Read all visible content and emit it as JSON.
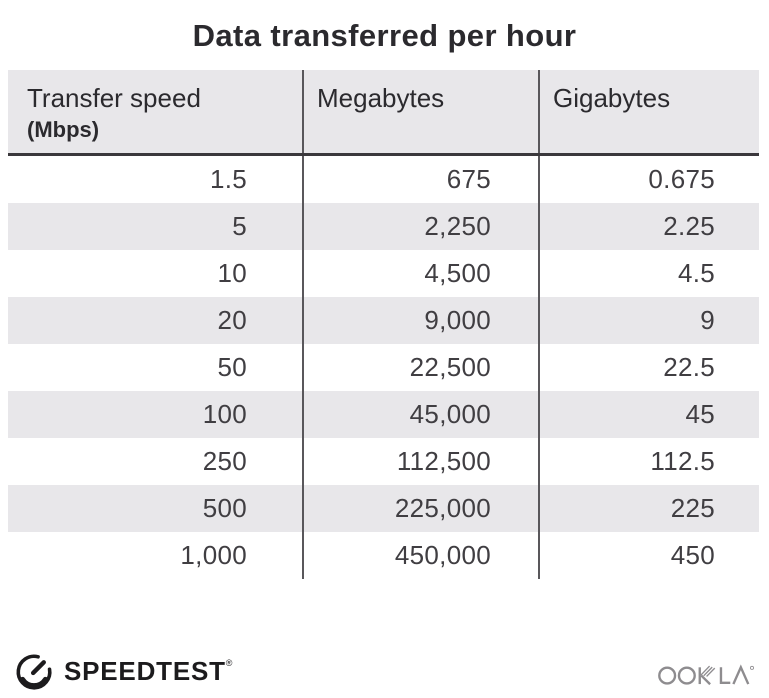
{
  "title": "Data transferred per hour",
  "table": {
    "columns": [
      {
        "label": "Transfer speed",
        "sublabel": "(Mbps)"
      },
      {
        "label": "Megabytes"
      },
      {
        "label": "Gigabytes"
      }
    ],
    "rows": [
      {
        "speed": "1.5",
        "megabytes": "675",
        "gigabytes": "0.675"
      },
      {
        "speed": "5",
        "megabytes": "2,250",
        "gigabytes": "2.25"
      },
      {
        "speed": "10",
        "megabytes": "4,500",
        "gigabytes": "4.5"
      },
      {
        "speed": "20",
        "megabytes": "9,000",
        "gigabytes": "9"
      },
      {
        "speed": "50",
        "megabytes": "22,500",
        "gigabytes": "22.5"
      },
      {
        "speed": "100",
        "megabytes": "45,000",
        "gigabytes": "45"
      },
      {
        "speed": "250",
        "megabytes": "112,500",
        "gigabytes": "112.5"
      },
      {
        "speed": "500",
        "megabytes": "225,000",
        "gigabytes": "225"
      },
      {
        "speed": "1,000",
        "megabytes": "450,000",
        "gigabytes": "450"
      }
    ]
  },
  "chart_data": {
    "type": "table",
    "title": "Data transferred per hour",
    "columns": [
      "Transfer speed (Mbps)",
      "Megabytes",
      "Gigabytes"
    ],
    "rows_numeric": [
      [
        1.5,
        675,
        0.675
      ],
      [
        5,
        2250,
        2.25
      ],
      [
        10,
        4500,
        4.5
      ],
      [
        20,
        9000,
        9
      ],
      [
        50,
        22500,
        22.5
      ],
      [
        100,
        45000,
        45
      ],
      [
        250,
        112500,
        112.5
      ],
      [
        500,
        225000,
        225
      ],
      [
        1000,
        450000,
        450
      ]
    ],
    "layout": {
      "striped_rows": "alternating",
      "header_bg": "#e8e7ea"
    }
  },
  "footer": {
    "speedtest_label": "SPEEDTEST",
    "speedtest_reg": "®",
    "ookla_label": "OOKLA",
    "ookla_reg": "®",
    "speedtest_icon": "gauge-icon"
  },
  "colors": {
    "header_bg": "#e8e7ea",
    "stripe_bg": "#e8e7ea",
    "column_divider": "#59575b",
    "header_rule": "#3a383c",
    "title_text": "#2b2a2e",
    "number_text": "#403e42",
    "speedtest_black": "#1c1b1d",
    "ookla_gray": "#8e8c8f"
  }
}
